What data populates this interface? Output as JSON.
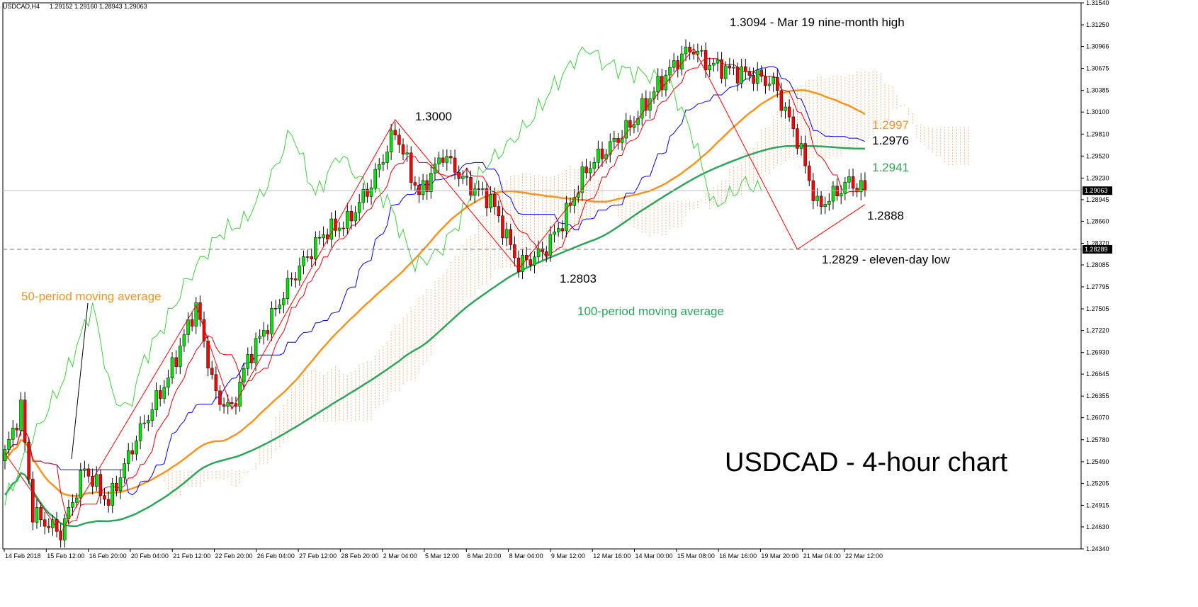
{
  "header": {
    "symbol": "USDCAD,H4",
    "ohlc": "1.29152 1.29160 1.28943 1.29063"
  },
  "chart_title": "USDCAD - 4-hour chart",
  "chart_data": {
    "type": "candlestick",
    "price_axis": {
      "ylim": [
        1.2434,
        1.3154
      ],
      "ticks": [
        "1.31540",
        "1.31250",
        "1.30966",
        "1.30675",
        "1.30385",
        "1.30100",
        "1.29810",
        "1.29520",
        "1.29230",
        "1.28945",
        "1.28660",
        "1.28370",
        "1.28085",
        "1.27795",
        "1.27505",
        "1.27220",
        "1.26930",
        "1.26645",
        "1.26355",
        "1.26070",
        "1.25780",
        "1.25490",
        "1.25205",
        "1.24915",
        "1.24630",
        "1.24340"
      ],
      "current_price": "1.29063",
      "reference_price": "1.28289",
      "reference_value": 1.2829
    },
    "x_ticks": [
      "14 Feb 2018",
      "15 Feb 12:00",
      "16 Feb 20:00",
      "20 Feb 04:00",
      "21 Feb 12:00",
      "22 Feb 20:00",
      "26 Feb 04:00",
      "27 Feb 12:00",
      "28 Feb 20:00",
      "2 Mar 04:00",
      "5 Mar 12:00",
      "6 Mar 20:00",
      "8 Mar 04:00",
      "9 Mar 12:00",
      "12 Mar 16:00",
      "14 Mar 00:00",
      "15 Mar 08:00",
      "16 Mar 16:00",
      "19 Mar 20:00",
      "21 Mar 04:00",
      "22 Mar 12:00"
    ],
    "anchors": [
      [
        0,
        1.256
      ],
      [
        4,
        1.262
      ],
      [
        7,
        1.248
      ],
      [
        14,
        1.2455
      ],
      [
        20,
        1.254
      ],
      [
        26,
        1.2495
      ],
      [
        33,
        1.258
      ],
      [
        41,
        1.266
      ],
      [
        48,
        1.2755
      ],
      [
        53,
        1.2635
      ],
      [
        57,
        1.2618
      ],
      [
        61,
        1.2685
      ],
      [
        66,
        1.273
      ],
      [
        72,
        1.279
      ],
      [
        80,
        1.285
      ],
      [
        86,
        1.2865
      ],
      [
        92,
        1.2915
      ],
      [
        98,
        1.2985
      ],
      [
        104,
        1.29
      ],
      [
        110,
        1.2955
      ],
      [
        116,
        1.2915
      ],
      [
        122,
        1.2895
      ],
      [
        129,
        1.2808
      ],
      [
        135,
        1.2825
      ],
      [
        140,
        1.2865
      ],
      [
        146,
        1.2935
      ],
      [
        152,
        1.2965
      ],
      [
        158,
        1.2998
      ],
      [
        164,
        1.3045
      ],
      [
        170,
        1.3085
      ],
      [
        173,
        1.3094
      ],
      [
        176,
        1.3075
      ],
      [
        182,
        1.3065
      ],
      [
        188,
        1.3058
      ],
      [
        193,
        1.3048
      ],
      [
        199,
        1.2975
      ],
      [
        204,
        1.2885
      ],
      [
        208,
        1.29
      ],
      [
        212,
        1.2918
      ],
      [
        216,
        1.2906
      ]
    ],
    "annotations": {
      "high": "1.3094 - Mar 19 nine-month high",
      "peak": "1.3000",
      "dip": "1.2803",
      "ma50_value": "1.2997",
      "resistance": "1.2976",
      "ma100_value": "1.2941",
      "support": "1.2888",
      "low": "1.2829 - eleven-day low",
      "ma50_label": "50-period moving average",
      "ma100_label": "100-period moving average"
    }
  },
  "colors": {
    "bull": "#00e600",
    "bear": "#ff0000",
    "ma50": "#f7931e",
    "ma100": "#2ca55a",
    "tenkan": "#e8000b",
    "kijun": "#0000ff",
    "chikou": "#3fd13f",
    "cloud": "#f7a56b",
    "zigzag": "#ff0000"
  }
}
